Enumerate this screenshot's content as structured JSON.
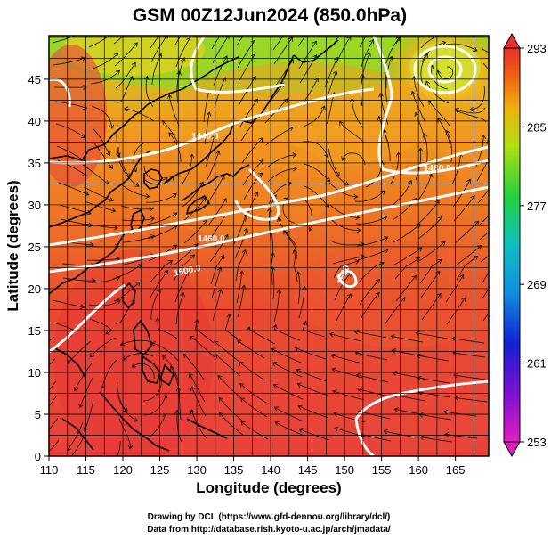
{
  "title": "GSM 00Z12Jun2024 (850.0hPa)",
  "x_axis": {
    "label": "Longitude (degrees)",
    "ticks": [
      "110",
      "115",
      "120",
      "125",
      "130",
      "135",
      "140",
      "145",
      "150",
      "155",
      "160",
      "165"
    ]
  },
  "y_axis": {
    "label": "Latitude  (degrees)",
    "ticks": [
      "0",
      "5",
      "10",
      "15",
      "20",
      "25",
      "30",
      "35",
      "40",
      "45"
    ]
  },
  "colorbar": {
    "ticks": [
      "293",
      "285",
      "277",
      "269",
      "261",
      "253"
    ],
    "min": 253,
    "max": 293
  },
  "contour_labels": [
    "1440.0",
    "1480.0",
    "1460.0",
    "1500.0",
    "1520"
  ],
  "credits": {
    "line1": "Drawing by DCL (https://www.gfd-dennou.org/library/dcl/)",
    "line2": "Data from http://database.rish.kyoto-u.ac.jp/arch/jmadata/"
  },
  "colors": {
    "warm": "#e8453a",
    "orange": "#f07f1c",
    "yellow": "#e9d21a",
    "green": "#6fd12a",
    "contour": "#ffffff",
    "stream": "#000000"
  }
}
